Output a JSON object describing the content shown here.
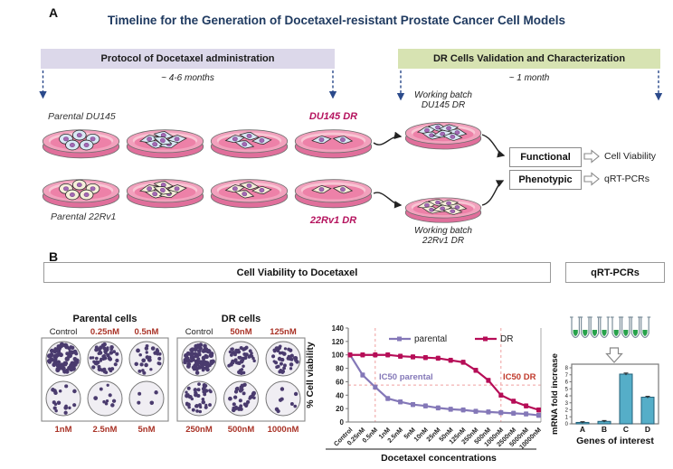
{
  "figure": {
    "panel_a_label": "A",
    "panel_b_label": "B",
    "title": "Timeline for the Generation of Docetaxel-resistant Prostate Cancer Cell Models"
  },
  "panel_a": {
    "protocol_bar": {
      "label": "Protocol of Docetaxel administration",
      "duration": "~ 4-6 months"
    },
    "validation_bar": {
      "label": "DR Cells Validation and Characterization",
      "duration": "~ 1 month"
    },
    "du145": {
      "parental_label": "Parental DU145",
      "dr_label": "DU145 DR",
      "working_batch_line1": "Working batch",
      "working_batch_line2": "DU145 DR"
    },
    "rv22": {
      "parental_label": "Parental 22Rv1",
      "dr_label": "22Rv1 DR",
      "working_batch_line1": "Working batch",
      "working_batch_line2": "22Rv1 DR"
    },
    "assays": [
      {
        "category": "Functional",
        "readout": "Cell Viability"
      },
      {
        "category": "Phenotypic",
        "readout": "qRT-PCRs"
      }
    ]
  },
  "panel_b": {
    "viability_header": "Cell Viability to Docetaxel",
    "qrtpcr_header": "qRT-PCRs",
    "colony_assays": [
      {
        "title": "Parental cells",
        "top_labels": [
          "Control",
          "0.25nM",
          "0.5nM"
        ],
        "bottom_labels": [
          "1nM",
          "2.5nM",
          "5nM"
        ],
        "densities": [
          74,
          48,
          26,
          16,
          9,
          4
        ]
      },
      {
        "title": "DR cells",
        "top_labels": [
          "Control",
          "50nM",
          "125nM"
        ],
        "bottom_labels": [
          "250nM",
          "500nM",
          "1000nM"
        ],
        "densities": [
          74,
          50,
          38,
          44,
          32,
          8
        ]
      }
    ]
  },
  "chart_data": [
    {
      "type": "line",
      "title": "",
      "xlabel": "Docetaxel concentrations",
      "ylabel": "% Cell viability",
      "ylim": [
        0,
        140
      ],
      "yticks": [
        0,
        20,
        40,
        60,
        80,
        100,
        120,
        140
      ],
      "grid": false,
      "legend_position": "top",
      "categories": [
        "Control",
        "0.25nM",
        "0.5nM",
        "1nM",
        "2.5nM",
        "5nM",
        "10nM",
        "25nM",
        "50nM",
        "125nM",
        "250nM",
        "500nM",
        "1000nM",
        "2500nM",
        "5000nM",
        "10000nM"
      ],
      "series": [
        {
          "name": "parental",
          "color": "#8478b8",
          "values": [
            100,
            70,
            52,
            35,
            30,
            26,
            24,
            21,
            19,
            18,
            16,
            15,
            14,
            13,
            12,
            10
          ],
          "error": 3
        },
        {
          "name": "DR",
          "color": "#b60d57",
          "values": [
            100,
            100,
            100,
            100,
            98,
            97,
            96,
            95,
            92,
            89,
            77,
            62,
            40,
            31,
            24,
            18
          ],
          "error": 3
        }
      ],
      "annotations": [
        {
          "text": "IC50 parental",
          "color": "#8478b8"
        },
        {
          "text": "IC50 DR",
          "color": "#c0392b"
        }
      ],
      "ic50_guides": {
        "horizontal_value": 55,
        "vertical_categories": [
          "0.5nM",
          "1000nM"
        ],
        "color": "#f0a0a0"
      }
    },
    {
      "type": "bar",
      "title": "",
      "xlabel": "Genes of interest",
      "ylabel": "mRNA fold increase",
      "ylim": [
        0,
        8
      ],
      "yticks": [
        0,
        1,
        2,
        3,
        4,
        5,
        6,
        7,
        8
      ],
      "categories": [
        "A",
        "B",
        "C",
        "D"
      ],
      "values": [
        0.2,
        0.35,
        7.1,
        3.8
      ],
      "errors": [
        0.1,
        0.12,
        0.15,
        0.12
      ],
      "bar_color": "#55aec8"
    }
  ],
  "colors": {
    "title_navy": "#1f3a60",
    "protocol_bar_bg": "#dcd8ea",
    "validation_bar_bg": "#d7e3b2",
    "dr_magenta": "#b5135e",
    "timeline_arrow": "#2b4a8b",
    "conc_label_red": "#a93226",
    "dish_top": "#f2a1bd",
    "dish_side": "#e06f9b",
    "dish_media": "#ed81a8",
    "dish_media_light": "#f8c6d4",
    "cell_blue": "#d9e8f4",
    "cell_cream": "#f6efd9",
    "nucleus_purple": "#a469b4",
    "colony_dot": "#4a3b6e",
    "tube_green": "#27a24b"
  }
}
